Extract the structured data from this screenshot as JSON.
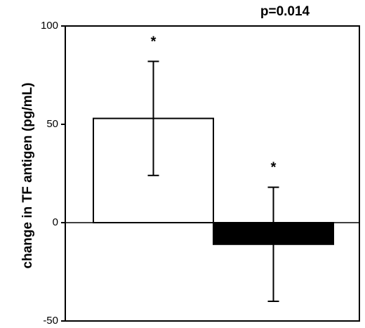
{
  "chart_data": {
    "type": "bar",
    "ylabel": "change in TF antigen (pg/mL)",
    "ylim": [
      -50,
      100
    ],
    "yticks": [
      100,
      50,
      0,
      -50
    ],
    "ytick_labels": [
      "100",
      "50",
      "0",
      "-50"
    ],
    "values": [
      53,
      -11
    ],
    "error_upper": [
      82,
      18
    ],
    "error_lower": [
      24,
      -40
    ],
    "bar_colors": [
      "#ffffff",
      "#000000"
    ],
    "significance": [
      "*",
      "*"
    ],
    "annotation": "p=0.014",
    "grid": false,
    "legend": "none"
  }
}
